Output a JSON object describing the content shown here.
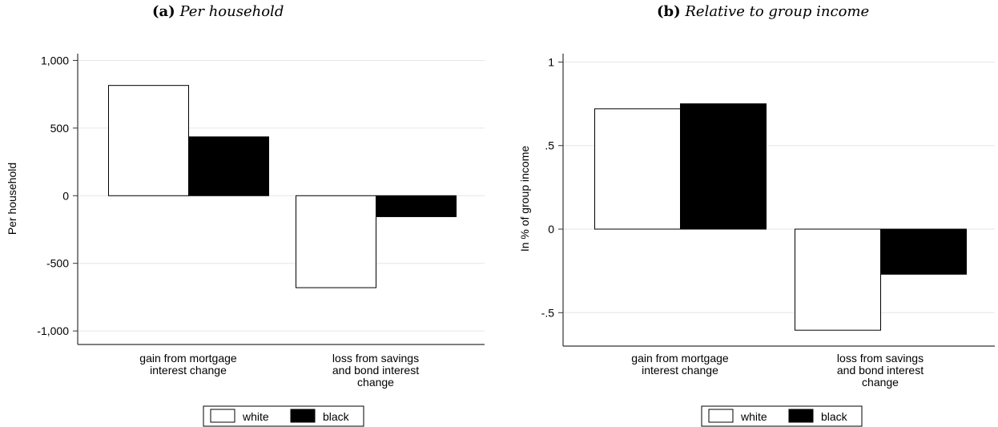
{
  "panels": [
    {
      "label": "(a)",
      "title": "Per household"
    },
    {
      "label": "(b)",
      "title": "Relative to group income"
    }
  ],
  "colors": {
    "white": "#ffffff",
    "black": "#000000",
    "grid": "#e6e6e6",
    "axis": "#333333"
  },
  "chart_data": [
    {
      "type": "bar",
      "title": "Per household",
      "ylabel": "Per household",
      "xlabel": "",
      "categories": [
        [
          "gain from mortgage",
          "interest change"
        ],
        [
          "loss from savings",
          "and bond interest",
          "change"
        ]
      ],
      "series": [
        {
          "name": "white",
          "values": [
            815,
            -680
          ]
        },
        {
          "name": "black",
          "values": [
            435,
            -155
          ]
        }
      ],
      "ylim": [
        -1100,
        1050
      ],
      "yticks": [
        1000,
        500,
        0,
        -500,
        -1000
      ],
      "ytick_labels": [
        "1,000",
        "500",
        "0",
        "-500",
        "-1,000"
      ],
      "grid": true,
      "legend": "bottom"
    },
    {
      "type": "bar",
      "title": "Relative to group income",
      "ylabel": "In % of group income",
      "xlabel": "",
      "categories": [
        [
          "gain from mortgage",
          "interest change"
        ],
        [
          "loss from savings",
          "and bond interest",
          "change"
        ]
      ],
      "series": [
        {
          "name": "white",
          "values": [
            0.72,
            -0.605
          ]
        },
        {
          "name": "black",
          "values": [
            0.75,
            -0.27
          ]
        }
      ],
      "ylim": [
        -0.7,
        1.05
      ],
      "yticks": [
        1,
        0.5,
        0,
        -0.5
      ],
      "ytick_labels": [
        "1",
        ".5",
        "0",
        "-.5"
      ],
      "grid": true,
      "legend": "bottom"
    }
  ]
}
